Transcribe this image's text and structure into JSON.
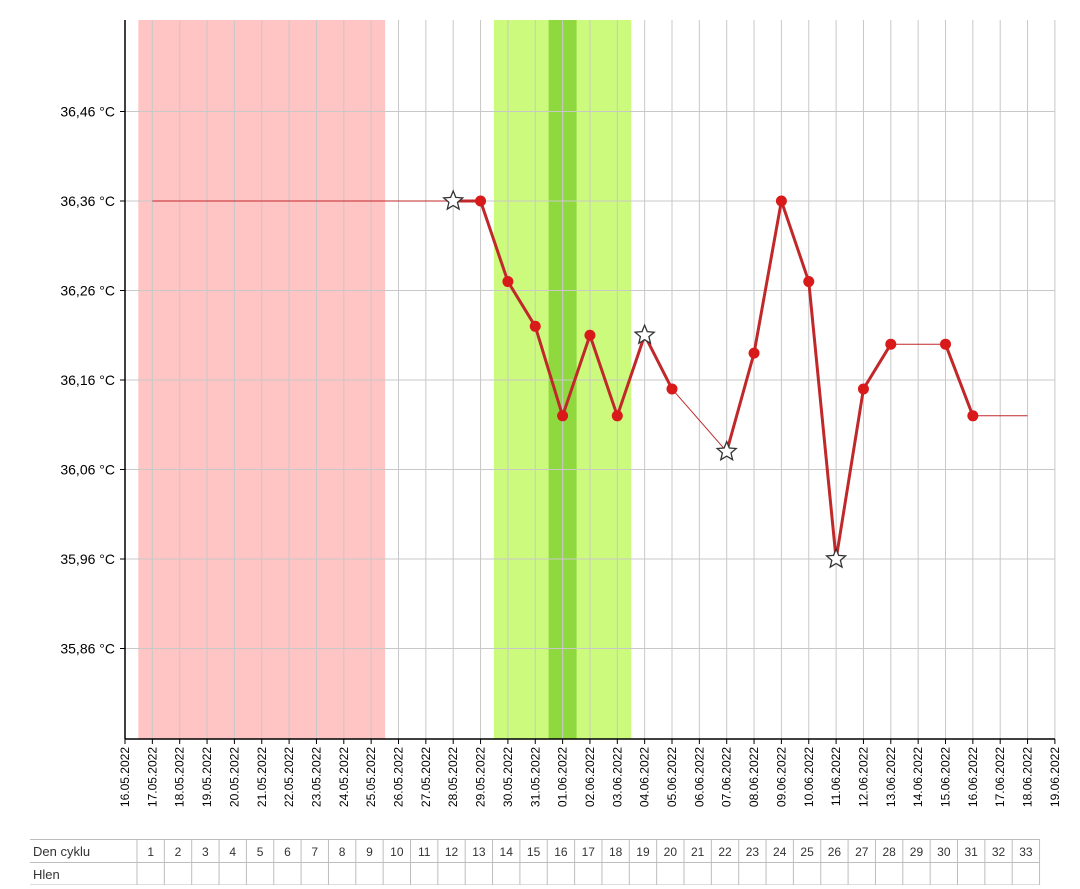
{
  "chart_data": {
    "type": "line",
    "title": "",
    "xlabel": "",
    "ylabel": "",
    "ylim": [
      35.76,
      36.56
    ],
    "y_ticks": [
      "36,46 °C",
      "36,36 °C",
      "36,26 °C",
      "36,16 °C",
      "36,06 °C",
      "35,96 °C",
      "35,86 °C"
    ],
    "y_tick_values": [
      36.46,
      36.36,
      36.26,
      36.16,
      36.06,
      35.96,
      35.86
    ],
    "x_dates": [
      "16.05.2022",
      "17.05.2022",
      "18.05.2022",
      "19.05.2022",
      "20.05.2022",
      "21.05.2022",
      "22.05.2022",
      "23.05.2022",
      "24.05.2022",
      "25.05.2022",
      "26.05.2022",
      "27.05.2022",
      "28.05.2022",
      "29.05.2022",
      "30.05.2022",
      "31.05.2022",
      "01.06.2022",
      "02.06.2022",
      "03.06.2022",
      "04.06.2022",
      "05.06.2022",
      "06.06.2022",
      "07.06.2022",
      "08.06.2022",
      "09.06.2022",
      "10.06.2022",
      "11.06.2022",
      "12.06.2022",
      "13.06.2022",
      "14.06.2022",
      "15.06.2022",
      "16.06.2022",
      "17.06.2022",
      "18.06.2022",
      "19.06.2022"
    ],
    "grid": true,
    "series": [
      {
        "points": [
          {
            "cycle_day": 12,
            "date": "28.05.2022",
            "value": 36.36,
            "marker": "star"
          },
          {
            "cycle_day": 13,
            "date": "29.05.2022",
            "value": 36.36,
            "marker": "dot"
          },
          {
            "cycle_day": 14,
            "date": "30.05.2022",
            "value": 36.27,
            "marker": "dot"
          },
          {
            "cycle_day": 15,
            "date": "31.05.2022",
            "value": 36.22,
            "marker": "dot"
          },
          {
            "cycle_day": 16,
            "date": "01.06.2022",
            "value": 36.12,
            "marker": "dot"
          },
          {
            "cycle_day": 17,
            "date": "02.06.2022",
            "value": 36.21,
            "marker": "dot"
          },
          {
            "cycle_day": 18,
            "date": "03.06.2022",
            "value": 36.12,
            "marker": "dot"
          },
          {
            "cycle_day": 19,
            "date": "04.06.2022",
            "value": 36.21,
            "marker": "star"
          },
          {
            "cycle_day": 20,
            "date": "05.06.2022",
            "value": 36.15,
            "marker": "dot"
          },
          {
            "cycle_day": 22,
            "date": "07.06.2022",
            "value": 36.08,
            "marker": "star"
          },
          {
            "cycle_day": 23,
            "date": "08.06.2022",
            "value": 36.19,
            "marker": "dot"
          },
          {
            "cycle_day": 24,
            "date": "09.06.2022",
            "value": 36.36,
            "marker": "dot"
          },
          {
            "cycle_day": 25,
            "date": "10.06.2022",
            "value": 36.27,
            "marker": "dot"
          },
          {
            "cycle_day": 26,
            "date": "11.06.2022",
            "value": 35.96,
            "marker": "star"
          },
          {
            "cycle_day": 27,
            "date": "12.06.2022",
            "value": 36.15,
            "marker": "dot"
          },
          {
            "cycle_day": 28,
            "date": "13.06.2022",
            "value": 36.2,
            "marker": "dot"
          },
          {
            "cycle_day": 30,
            "date": "15.06.2022",
            "value": 36.2,
            "marker": "dot"
          },
          {
            "cycle_day": 31,
            "date": "16.06.2022",
            "value": 36.12,
            "marker": "dot"
          }
        ],
        "lead_in": {
          "from_cycle_day": 1,
          "to_cycle_day": 12,
          "value": 36.36
        },
        "trail_out": {
          "from_cycle_day": 31,
          "to_cycle_day": 33,
          "value": 36.12
        },
        "thin_segments": [
          [
            20,
            22
          ],
          [
            28,
            30
          ]
        ]
      }
    ],
    "bands": [
      {
        "kind": "menstruation",
        "from_cycle_day": 1,
        "to_cycle_day": 9,
        "color": "#ffc4c4"
      },
      {
        "kind": "fertile",
        "from_cycle_day": 14,
        "to_cycle_day": 18,
        "color": "#ccfa7c"
      },
      {
        "kind": "peak",
        "from_cycle_day": 16,
        "to_cycle_day": 16,
        "color": "#8fd93f"
      }
    ],
    "colors": {
      "line": "#c0282a",
      "dot": "#d91a1a",
      "grid": "#c8c8c8",
      "axis": "#000000"
    }
  },
  "table": {
    "rows": [
      {
        "label": "Den cyklu",
        "cells": [
          "1",
          "2",
          "3",
          "4",
          "5",
          "6",
          "7",
          "8",
          "9",
          "10",
          "11",
          "12",
          "13",
          "14",
          "15",
          "16",
          "17",
          "18",
          "19",
          "20",
          "21",
          "22",
          "23",
          "24",
          "25",
          "26",
          "27",
          "28",
          "29",
          "30",
          "31",
          "32",
          "33"
        ]
      },
      {
        "label": "Hlen",
        "cells": [
          "",
          "",
          "",
          "",
          "",
          "",
          "",
          "",
          "",
          "",
          "",
          "",
          "",
          "",
          "",
          "",
          "",
          "",
          "",
          "",
          "",
          "",
          "",
          "",
          "",
          "",
          "",
          "",
          "",
          "",
          "",
          "",
          ""
        ]
      }
    ]
  }
}
